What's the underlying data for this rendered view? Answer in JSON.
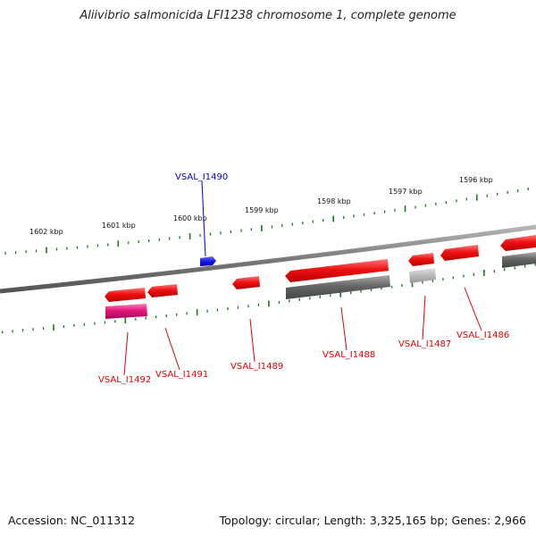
{
  "title": "Aliivibrio salmonicida LFI1238 chromosome 1, complete genome",
  "footer": {
    "accession": "Accession: NC_011312",
    "summary": "Topology: circular; Length: 3,325,165 bp; Genes: 2,966"
  },
  "scale_labels": [
    "1602 kbp",
    "1601 kbp",
    "1600 kbp",
    "1599 kbp",
    "1598 kbp",
    "1597 kbp",
    "1596 kbp"
  ],
  "gene_labels": [
    {
      "id": "VSAL_I1490",
      "color": "#0000cc"
    },
    {
      "id": "VSAL_I1492",
      "color": "#dd0000"
    },
    {
      "id": "VSAL_I1491",
      "color": "#dd0000"
    },
    {
      "id": "VSAL_I1489",
      "color": "#dd0000"
    },
    {
      "id": "VSAL_I1488",
      "color": "#dd0000"
    },
    {
      "id": "VSAL_I1487",
      "color": "#dd0000"
    },
    {
      "id": "VSAL_I1486",
      "color": "#dd0000"
    }
  ],
  "colors": {
    "backbone": "#7a7a7a",
    "tick": "#1a7a1a",
    "gene_red": "#ee1111",
    "gene_gray": "#666666",
    "gene_light_gray": "#b8b8b8",
    "gene_pink": "#e0157a",
    "gene_blue": "#1a1aee"
  }
}
